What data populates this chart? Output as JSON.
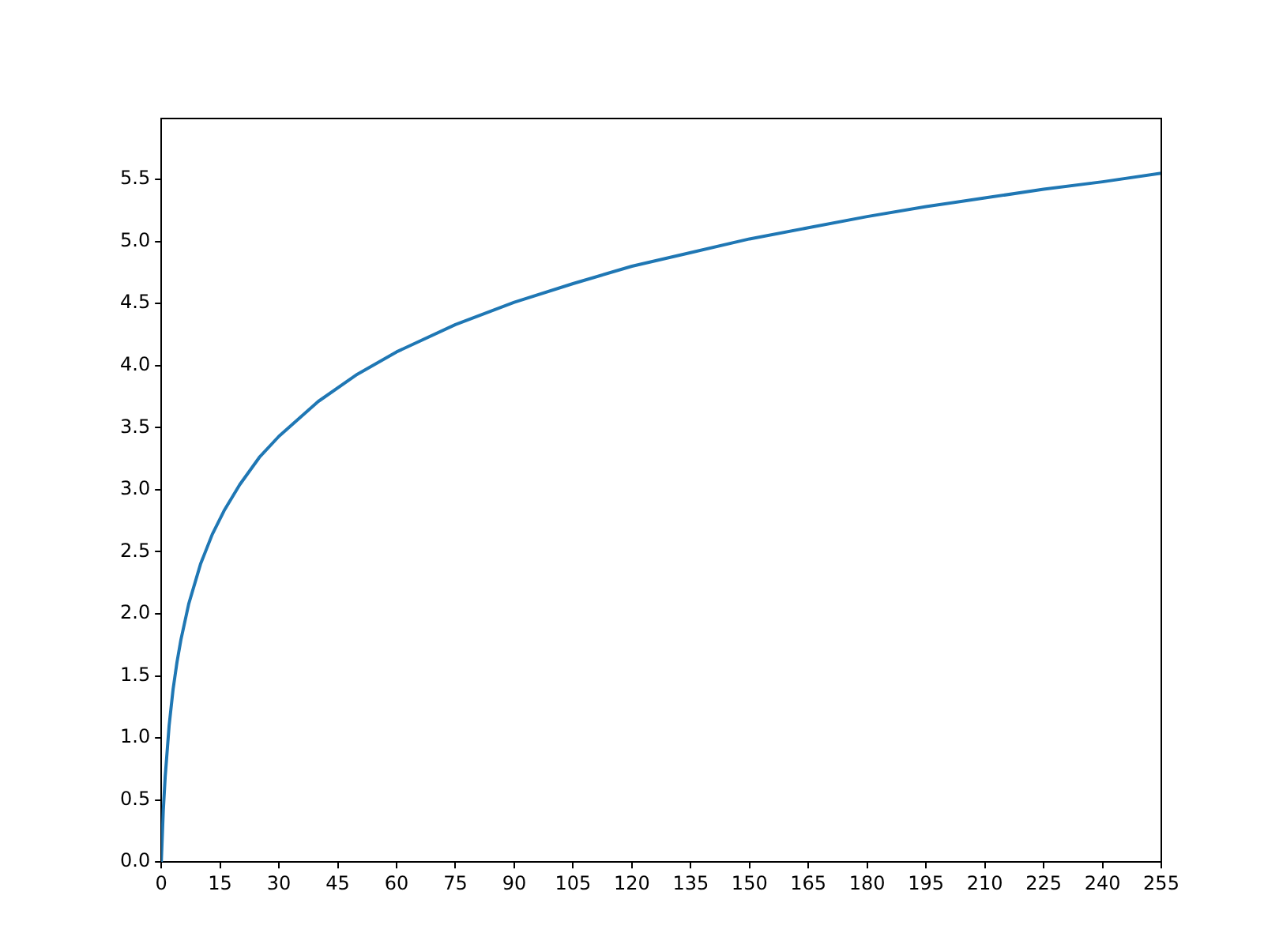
{
  "chart_data": {
    "type": "line",
    "x": [
      0,
      0.5,
      1,
      2,
      3,
      4,
      5,
      7,
      10,
      13,
      16,
      20,
      25,
      30,
      40,
      50,
      60,
      75,
      90,
      105,
      120,
      135,
      150,
      165,
      180,
      195,
      210,
      225,
      240,
      255
    ],
    "series": [
      {
        "color": "#1f77b4",
        "values": [
          0,
          0.41,
          0.69,
          1.1,
          1.39,
          1.61,
          1.79,
          2.08,
          2.4,
          2.64,
          2.83,
          3.04,
          3.26,
          3.43,
          3.71,
          3.93,
          4.11,
          4.33,
          4.51,
          4.66,
          4.8,
          4.91,
          5.02,
          5.11,
          5.2,
          5.28,
          5.35,
          5.42,
          5.48,
          5.55
        ]
      }
    ],
    "xlim": [
      0,
      255
    ],
    "xticks": [
      0,
      15,
      30,
      45,
      60,
      75,
      90,
      105,
      120,
      135,
      150,
      165,
      180,
      195,
      210,
      225,
      240,
      255
    ],
    "ylim": [
      0,
      5.99
    ],
    "yticks": [
      {
        "value": 0,
        "label": "0.0"
      },
      {
        "value": 0.5,
        "label": "0.5"
      },
      {
        "value": 1,
        "label": "1.0"
      },
      {
        "value": 1.5,
        "label": "1.5"
      },
      {
        "value": 2,
        "label": "2.0"
      },
      {
        "value": 2.5,
        "label": "2.5"
      },
      {
        "value": 3,
        "label": "3.0"
      },
      {
        "value": 3.5,
        "label": "3.5"
      },
      {
        "value": 4,
        "label": "4.0"
      },
      {
        "value": 4.5,
        "label": "4.5"
      },
      {
        "value": 5,
        "label": "5.0"
      },
      {
        "value": 5.5,
        "label": "5.5"
      }
    ],
    "grid": false,
    "legend": false,
    "marker": "none",
    "line_style": "solid"
  }
}
